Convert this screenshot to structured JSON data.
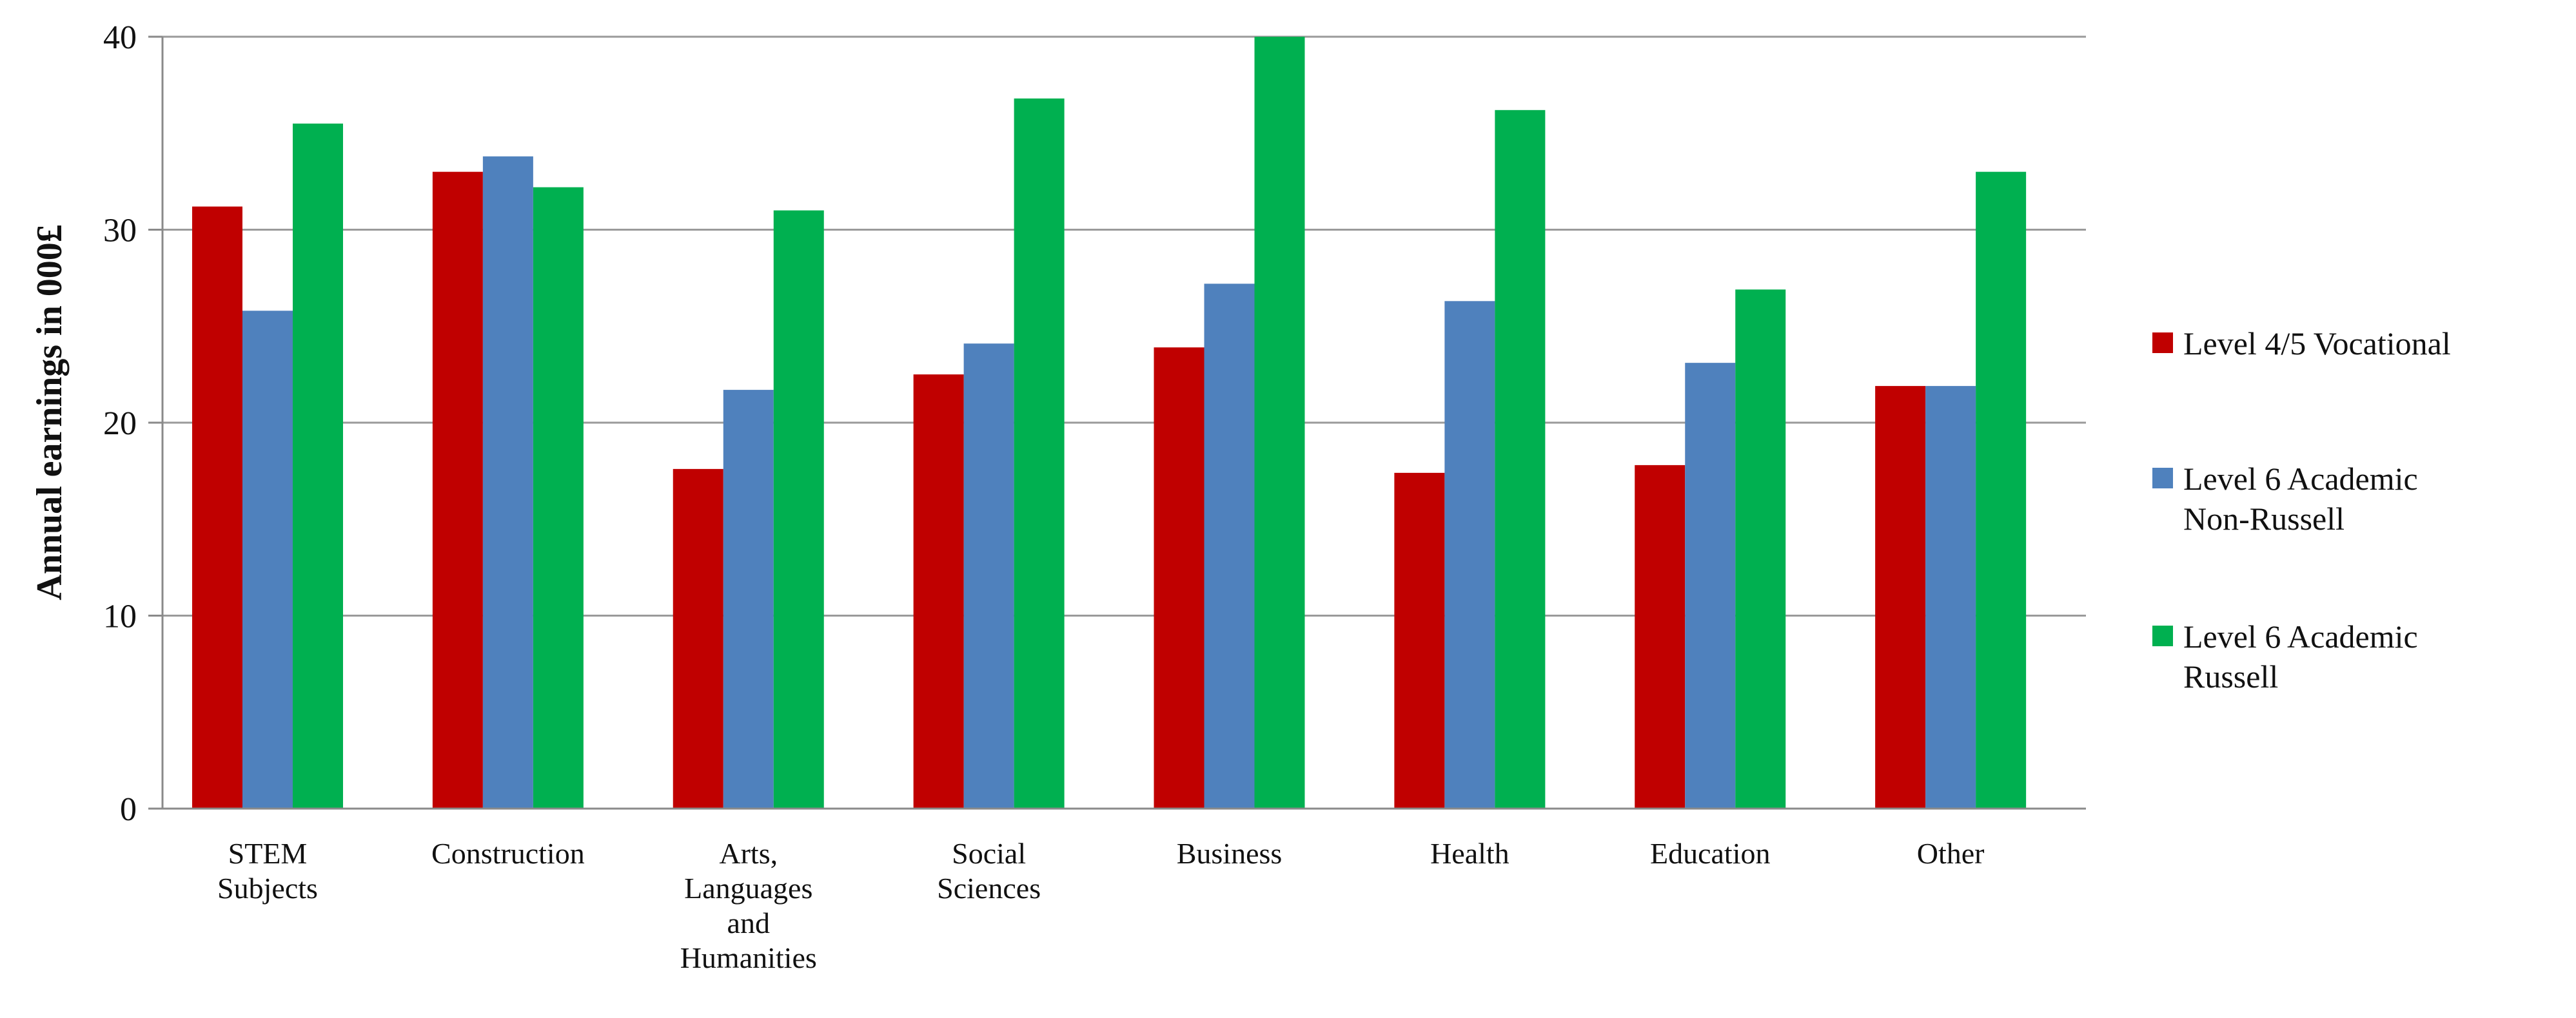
{
  "chart_data": {
    "type": "bar",
    "title": "",
    "xlabel": "",
    "ylabel": "Annual earnings in 000£",
    "ylim": [
      0,
      40
    ],
    "yticks": [
      "0",
      "10",
      "20",
      "30",
      "40"
    ],
    "grid": "horizontal",
    "legend_position": "right",
    "categories": [
      [
        "STEM",
        "Subjects"
      ],
      [
        "Construction"
      ],
      [
        "Arts,",
        "Languages",
        "and",
        "Humanities"
      ],
      [
        "Social",
        "Sciences"
      ],
      [
        "Business"
      ],
      [
        "Health"
      ],
      [
        "Education"
      ],
      [
        "Other"
      ]
    ],
    "series": [
      {
        "name": "Level 4/5 Vocational",
        "legend_lines": [
          "Level 4/5 Vocational"
        ],
        "color": "#c00000",
        "values": [
          31.2,
          33.0,
          17.6,
          22.5,
          23.9,
          17.4,
          17.8,
          21.9
        ]
      },
      {
        "name": "Level 6 Academic Non-Russell",
        "legend_lines": [
          "Level 6 Academic",
          "Non-Russell"
        ],
        "color": "#4f81bd",
        "values": [
          25.8,
          33.8,
          21.7,
          24.1,
          27.2,
          26.3,
          23.1,
          21.9
        ]
      },
      {
        "name": "Level 6 Academic Russell",
        "legend_lines": [
          "Level 6 Academic",
          "Russell"
        ],
        "color": "#00b050",
        "values": [
          35.5,
          32.2,
          31.0,
          36.8,
          40.0,
          36.2,
          26.9,
          33.0
        ]
      }
    ]
  }
}
